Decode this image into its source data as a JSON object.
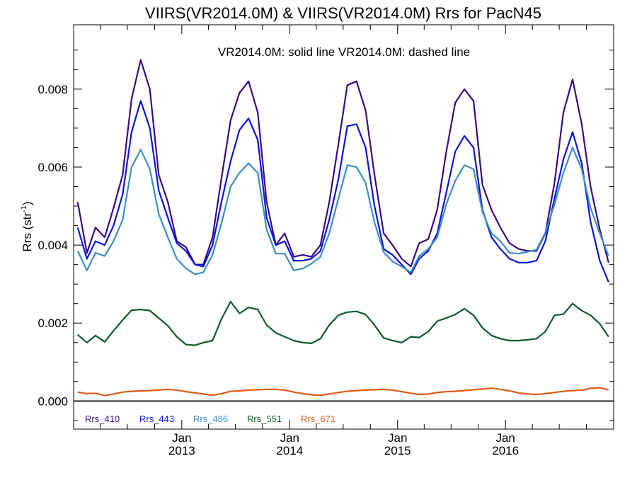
{
  "chart_data": {
    "type": "line",
    "title": "VIIRS(VR2014.0M) & VIIRS(VR2014.0M)  Rrs for PacN45",
    "annotation": "VR2014.0M: solid line   VR2014.0M: dashed line",
    "ylabel": "Rrs (str",
    "ylabel_sup": "-1",
    "ylabel_close": ")",
    "ylim": [
      -0.00072,
      0.00965
    ],
    "xlim": [
      "2012-01-01",
      "2017-01-01"
    ],
    "y_ticks": [
      "0.000",
      "0.002",
      "0.004",
      "0.006",
      "0.008"
    ],
    "y_tick_values": [
      0,
      0.002,
      0.004,
      0.006,
      0.008
    ],
    "x_ticks": [
      {
        "month": "Jan",
        "year": "2013",
        "date": "2013-01-01"
      },
      {
        "month": "Jan",
        "year": "2014",
        "date": "2014-01-01"
      },
      {
        "month": "Jan",
        "year": "2015",
        "date": "2015-01-01"
      },
      {
        "month": "Jan",
        "year": "2016",
        "date": "2016-01-01"
      }
    ],
    "grid": false,
    "legend_position": "bottom-left",
    "x": [
      "2012-01",
      "2012-02",
      "2012-03",
      "2012-04",
      "2012-05",
      "2012-06",
      "2012-07",
      "2012-08",
      "2012-09",
      "2012-10",
      "2012-11",
      "2012-12",
      "2013-01",
      "2013-02",
      "2013-03",
      "2013-04",
      "2013-05",
      "2013-06",
      "2013-07",
      "2013-08",
      "2013-09",
      "2013-10",
      "2013-11",
      "2013-12",
      "2014-01",
      "2014-02",
      "2014-03",
      "2014-04",
      "2014-05",
      "2014-06",
      "2014-07",
      "2014-08",
      "2014-09",
      "2014-10",
      "2014-11",
      "2014-12",
      "2015-01",
      "2015-02",
      "2015-03",
      "2015-04",
      "2015-05",
      "2015-06",
      "2015-07",
      "2015-08",
      "2015-09",
      "2015-10",
      "2015-11",
      "2015-12",
      "2016-01",
      "2016-02",
      "2016-03",
      "2016-04",
      "2016-05",
      "2016-06",
      "2016-07",
      "2016-08",
      "2016-09",
      "2016-10",
      "2016-11",
      "2016-12"
    ],
    "series": [
      {
        "name": "Rrs_410",
        "color": "#3b0a80",
        "values": [
          0.0051,
          0.0038,
          0.00445,
          0.0042,
          0.00495,
          0.0058,
          0.00775,
          0.00875,
          0.008,
          0.0058,
          0.0051,
          0.0041,
          0.00395,
          0.0035,
          0.0035,
          0.0042,
          0.0057,
          0.0072,
          0.0079,
          0.0082,
          0.0074,
          0.0051,
          0.004,
          0.0043,
          0.0037,
          0.00375,
          0.0037,
          0.004,
          0.0051,
          0.0066,
          0.0081,
          0.0082,
          0.00745,
          0.0058,
          0.0043,
          0.004,
          0.00365,
          0.00345,
          0.00405,
          0.00415,
          0.0049,
          0.0064,
          0.00765,
          0.008,
          0.0077,
          0.00555,
          0.0049,
          0.00445,
          0.00405,
          0.0039,
          0.00385,
          0.00385,
          0.0043,
          0.0056,
          0.0074,
          0.00825,
          0.0071,
          0.0055,
          0.0044,
          0.00355
        ]
      },
      {
        "name": "Rrs_443",
        "color": "#0a14d8",
        "values": [
          0.00445,
          0.00365,
          0.0041,
          0.004,
          0.0045,
          0.0053,
          0.0069,
          0.0077,
          0.007,
          0.0054,
          0.0047,
          0.00405,
          0.00385,
          0.0035,
          0.00345,
          0.004,
          0.0051,
          0.00615,
          0.00695,
          0.00725,
          0.0067,
          0.0047,
          0.004,
          0.0041,
          0.0036,
          0.0036,
          0.00365,
          0.00385,
          0.00465,
          0.0057,
          0.00705,
          0.0071,
          0.0065,
          0.005,
          0.0039,
          0.00375,
          0.0035,
          0.00325,
          0.00365,
          0.00385,
          0.0043,
          0.00535,
          0.0064,
          0.0068,
          0.0065,
          0.0049,
          0.0042,
          0.0039,
          0.00365,
          0.00355,
          0.00355,
          0.0036,
          0.0041,
          0.0052,
          0.0062,
          0.0069,
          0.0061,
          0.0046,
          0.0036,
          0.00305
        ]
      },
      {
        "name": "Rrs_486",
        "color": "#3a8ec8",
        "values": [
          0.00385,
          0.00335,
          0.0038,
          0.00372,
          0.0041,
          0.00465,
          0.006,
          0.00645,
          0.00595,
          0.0048,
          0.0042,
          0.00365,
          0.0034,
          0.00325,
          0.0033,
          0.00375,
          0.00455,
          0.0055,
          0.00585,
          0.0061,
          0.00585,
          0.0044,
          0.00378,
          0.00378,
          0.00335,
          0.0034,
          0.00352,
          0.0037,
          0.0043,
          0.0052,
          0.00605,
          0.006,
          0.0056,
          0.00458,
          0.00382,
          0.00358,
          0.00345,
          0.0033,
          0.00372,
          0.0039,
          0.0042,
          0.00505,
          0.00565,
          0.00605,
          0.00595,
          0.00485,
          0.0043,
          0.0041,
          0.0038,
          0.00378,
          0.00383,
          0.00388,
          0.00432,
          0.00505,
          0.00585,
          0.0065,
          0.00595,
          0.00495,
          0.0043,
          0.00372
        ]
      },
      {
        "name": "Rrs_551",
        "color": "#0d5a30",
        "values": [
          0.0017,
          0.0015,
          0.00168,
          0.00152,
          0.0018,
          0.00208,
          0.00233,
          0.00235,
          0.00232,
          0.00213,
          0.00193,
          0.00165,
          0.00145,
          0.00143,
          0.0015,
          0.00155,
          0.0021,
          0.00255,
          0.00225,
          0.0024,
          0.00235,
          0.00195,
          0.00175,
          0.00165,
          0.00155,
          0.0015,
          0.00148,
          0.0016,
          0.00195,
          0.0022,
          0.00228,
          0.0023,
          0.00222,
          0.00195,
          0.00162,
          0.00155,
          0.0015,
          0.00165,
          0.00163,
          0.00178,
          0.00205,
          0.00213,
          0.00222,
          0.00237,
          0.0022,
          0.00188,
          0.00168,
          0.0016,
          0.00155,
          0.00155,
          0.00157,
          0.0016,
          0.00178,
          0.0022,
          0.00223,
          0.0025,
          0.00232,
          0.0022,
          0.00198,
          0.00165
        ]
      },
      {
        "name": "Rrs_671",
        "color": "#e05a14",
        "values": [
          0.00023,
          0.00019,
          0.0002,
          0.00014,
          0.00018,
          0.00023,
          0.00025,
          0.00026,
          0.00027,
          0.00028,
          0.0003,
          0.00028,
          0.00024,
          0.00021,
          0.00018,
          0.00015,
          0.00019,
          0.00025,
          0.00026,
          0.00028,
          0.00029,
          0.0003,
          0.0003,
          0.00028,
          0.00023,
          0.00019,
          0.00016,
          0.00015,
          0.00018,
          0.00022,
          0.00025,
          0.00027,
          0.00028,
          0.00029,
          0.0003,
          0.00028,
          0.00024,
          0.0002,
          0.00017,
          0.00018,
          0.00022,
          0.00024,
          0.00025,
          0.00027,
          0.00029,
          0.00031,
          0.00033,
          0.0003,
          0.00026,
          0.00021,
          0.00018,
          0.00017,
          0.00019,
          0.00022,
          0.00025,
          0.00027,
          0.00028,
          0.00033,
          0.00034,
          0.00029
        ]
      }
    ]
  }
}
